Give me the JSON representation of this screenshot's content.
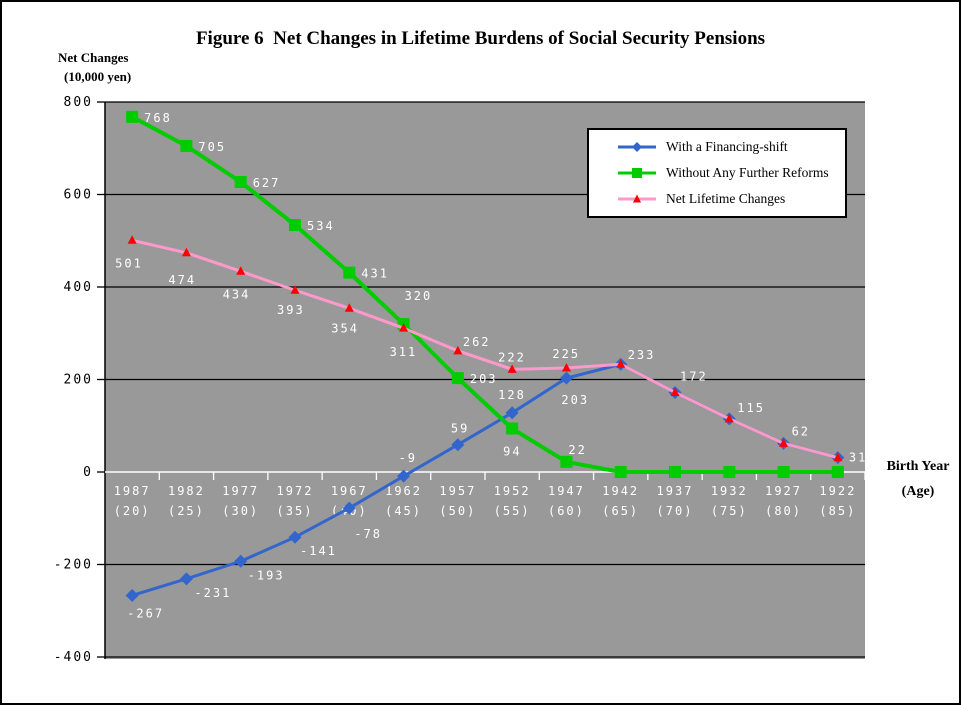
{
  "figure": {
    "title": "Figure 6  Net Changes in Lifetime Burdens of Social Security Pensions",
    "y_axis_title_line1": "Net Changes",
    "y_axis_title_line2": "(10,000 yen)",
    "x_axis_title_line1": "Birth Year",
    "x_axis_title_line2": "(Age)"
  },
  "chart_data": {
    "type": "line",
    "title": "Figure 6  Net Changes in Lifetime Burdens of Social Security Pensions",
    "xlabel": "Birth Year (Age)",
    "ylabel": "Net Changes (10,000 yen)",
    "ylim": [
      -400,
      800
    ],
    "yticks": [
      800,
      600,
      400,
      200,
      0,
      -200,
      -400
    ],
    "grid": "horizontal",
    "plot_bg_color": "#999999",
    "gridline_color": "#000000",
    "zero_axis_color": "#ffffff",
    "legend_position": "top-right-inside",
    "categories": [
      "1987",
      "1982",
      "1977",
      "1972",
      "1967",
      "1962",
      "1957",
      "1952",
      "1947",
      "1942",
      "1937",
      "1932",
      "1927",
      "1922"
    ],
    "ages": [
      "(20)",
      "(25)",
      "(30)",
      "(35)",
      "(40)",
      "(45)",
      "(50)",
      "(55)",
      "(60)",
      "(65)",
      "(70)",
      "(75)",
      "(80)",
      "(85)"
    ],
    "series": [
      {
        "name": "With a Financing-shift",
        "color": "#3366CC",
        "marker": "diamond",
        "marker_color": "#3366CC",
        "values": [
          -267,
          -231,
          -193,
          -141,
          -78,
          -9,
          59,
          128,
          203,
          233,
          172,
          115,
          62,
          31
        ],
        "label_offsets": [
          [
            -5,
            22
          ],
          [
            8,
            18
          ],
          [
            7,
            18
          ],
          [
            5,
            18
          ],
          [
            5,
            30
          ],
          [
            -5,
            -14
          ],
          [
            -7,
            -12
          ],
          [
            -14,
            -14
          ],
          [
            -5,
            26
          ],
          null,
          null,
          null,
          null,
          null
        ]
      },
      {
        "name": "Without Any Further Reforms",
        "color": "#00CC00",
        "marker": "square",
        "marker_color": "#00CC00",
        "values": [
          768,
          705,
          627,
          534,
          431,
          320,
          203,
          94,
          22,
          0,
          0,
          0,
          0,
          0
        ],
        "label_offsets": [
          [
            12,
            5
          ],
          [
            12,
            5
          ],
          [
            12,
            5
          ],
          [
            12,
            5
          ],
          [
            12,
            5
          ],
          [
            1,
            -24
          ],
          [
            12,
            5
          ],
          [
            -9,
            27
          ],
          [
            2,
            -8
          ],
          null,
          null,
          null,
          null,
          null
        ]
      },
      {
        "name": "Net Lifetime Changes",
        "color": "#FF99CC",
        "marker": "triangle",
        "marker_color": "#FF0000",
        "values": [
          501,
          474,
          434,
          393,
          354,
          311,
          262,
          222,
          225,
          233,
          172,
          115,
          62,
          31
        ],
        "label_offsets": [
          [
            -17,
            27
          ],
          [
            -18,
            31
          ],
          [
            -18,
            27
          ],
          [
            -18,
            24
          ],
          [
            -18,
            24
          ],
          [
            -14,
            28
          ],
          [
            5,
            -5
          ],
          [
            -14,
            -8
          ],
          [
            -14,
            -10
          ],
          [
            7,
            -5
          ],
          [
            5,
            -12
          ],
          [
            8,
            -7
          ],
          [
            8,
            -8
          ],
          [
            11,
            4
          ]
        ]
      }
    ]
  }
}
